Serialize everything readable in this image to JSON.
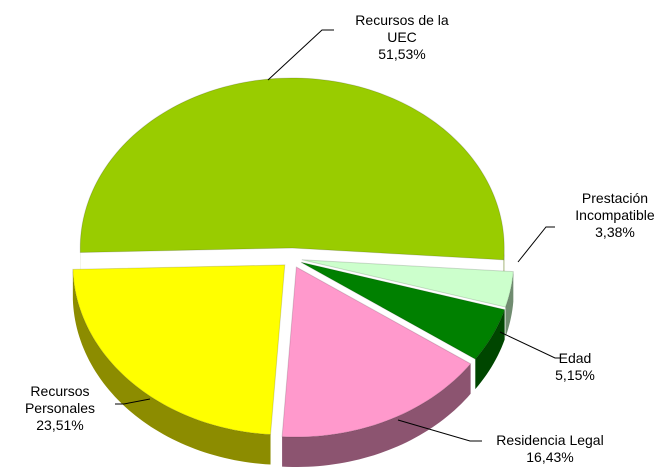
{
  "chart_data": {
    "type": "pie",
    "categories": [
      "Prestación Incompatible",
      "Edad",
      "Residencia Legal",
      "Recursos Personales",
      "Recursos de la UEC"
    ],
    "values": [
      3.38,
      5.15,
      16.43,
      23.51,
      51.53
    ],
    "value_labels": [
      "3,38%",
      "5,15%",
      "16,43%",
      "23,51%",
      "51,53%"
    ],
    "colors": [
      "#ccffcc",
      "#008000",
      "#ff99cc",
      "#ffff00",
      "#99cc00"
    ]
  }
}
